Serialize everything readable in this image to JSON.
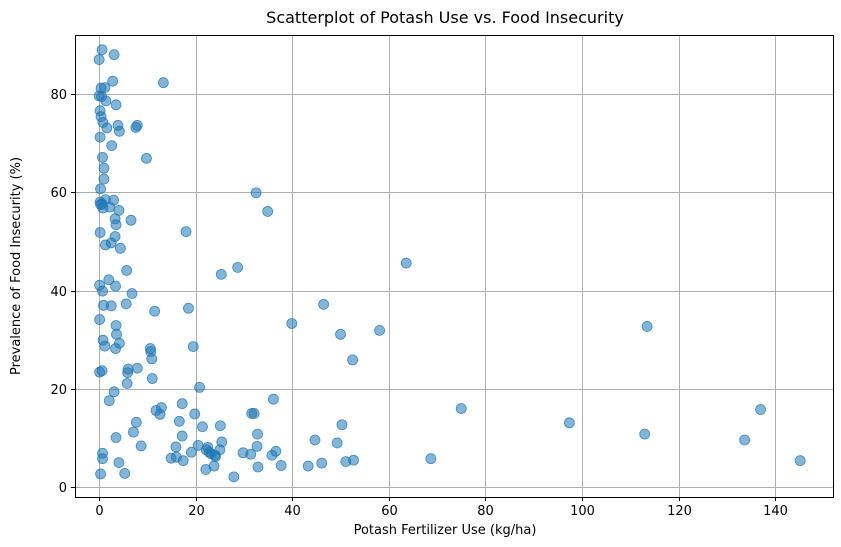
{
  "chart_data": {
    "type": "scatter",
    "title": "Scatterplot of Potash Use vs. Food Insecurity",
    "xlabel": "Potash Fertilizer Use (kg/ha)",
    "ylabel": "Prevalence of Food Insecurity (%)",
    "xlim": [
      -5,
      152
    ],
    "ylim": [
      -2,
      92
    ],
    "xticks": [
      0,
      20,
      40,
      60,
      80,
      100,
      120,
      140
    ],
    "yticks": [
      0,
      20,
      40,
      60,
      80
    ],
    "grid": true,
    "marker_color": "#1f77b4",
    "marker_alpha": 0.55,
    "points": [
      [
        0.6,
        89.0
      ],
      [
        3.1,
        88.0
      ],
      [
        0.0,
        87.0
      ],
      [
        13.3,
        82.3
      ],
      [
        2.8,
        82.6
      ],
      [
        0.4,
        81.2
      ],
      [
        1.2,
        81.3
      ],
      [
        0.0,
        79.6
      ],
      [
        0.5,
        79.5
      ],
      [
        1.4,
        78.6
      ],
      [
        3.5,
        77.8
      ],
      [
        0.2,
        76.6
      ],
      [
        0.4,
        75.4
      ],
      [
        0.8,
        74.2
      ],
      [
        7.9,
        73.6
      ],
      [
        7.6,
        73.2
      ],
      [
        1.6,
        73.1
      ],
      [
        3.9,
        73.6
      ],
      [
        4.2,
        72.4
      ],
      [
        0.2,
        71.2
      ],
      [
        2.6,
        69.5
      ],
      [
        0.7,
        67.1
      ],
      [
        9.8,
        66.9
      ],
      [
        1.0,
        64.9
      ],
      [
        1.0,
        62.7
      ],
      [
        0.3,
        60.7
      ],
      [
        32.5,
        59.9
      ],
      [
        1.3,
        58.5
      ],
      [
        3.0,
        58.4
      ],
      [
        0.2,
        58.0
      ],
      [
        0.6,
        57.6
      ],
      [
        0.3,
        57.5
      ],
      [
        2.2,
        57.0
      ],
      [
        0.8,
        56.8
      ],
      [
        34.9,
        56.1
      ],
      [
        4.1,
        56.3
      ],
      [
        3.3,
        54.6
      ],
      [
        6.6,
        54.3
      ],
      [
        3.5,
        53.4
      ],
      [
        18.0,
        52.0
      ],
      [
        0.2,
        51.8
      ],
      [
        3.3,
        51.0
      ],
      [
        2.5,
        49.7
      ],
      [
        1.3,
        49.3
      ],
      [
        4.4,
        48.6
      ],
      [
        63.6,
        45.6
      ],
      [
        28.7,
        44.7
      ],
      [
        5.7,
        44.1
      ],
      [
        25.3,
        43.3
      ],
      [
        2.0,
        42.2
      ],
      [
        0.1,
        41.1
      ],
      [
        3.4,
        40.9
      ],
      [
        0.7,
        39.9
      ],
      [
        6.8,
        39.4
      ],
      [
        46.5,
        37.2
      ],
      [
        5.6,
        37.3
      ],
      [
        2.5,
        36.9
      ],
      [
        0.9,
        37.0
      ],
      [
        18.5,
        36.4
      ],
      [
        11.5,
        35.8
      ],
      [
        0.1,
        34.1
      ],
      [
        39.9,
        33.3
      ],
      [
        113.5,
        32.7
      ],
      [
        3.5,
        32.9
      ],
      [
        58.1,
        31.9
      ],
      [
        50.0,
        31.1
      ],
      [
        3.6,
        31.1
      ],
      [
        0.8,
        29.9
      ],
      [
        4.2,
        29.3
      ],
      [
        1.2,
        28.7
      ],
      [
        19.5,
        28.6
      ],
      [
        3.4,
        28.2
      ],
      [
        10.6,
        28.2
      ],
      [
        10.7,
        27.6
      ],
      [
        10.9,
        26.1
      ],
      [
        52.5,
        25.9
      ],
      [
        7.9,
        24.2
      ],
      [
        6.0,
        24.0
      ],
      [
        0.6,
        23.7
      ],
      [
        5.9,
        23.3
      ],
      [
        0.1,
        23.4
      ],
      [
        11.0,
        22.1
      ],
      [
        5.8,
        21.1
      ],
      [
        20.8,
        20.3
      ],
      [
        3.1,
        19.4
      ],
      [
        36.1,
        17.9
      ],
      [
        2.1,
        17.6
      ],
      [
        17.2,
        17.0
      ],
      [
        12.9,
        16.2
      ],
      [
        75.0,
        16.0
      ],
      [
        137.0,
        15.8
      ],
      [
        11.8,
        15.6
      ],
      [
        12.6,
        14.8
      ],
      [
        32.1,
        15.0
      ],
      [
        31.6,
        15.0
      ],
      [
        19.8,
        14.9
      ],
      [
        7.7,
        13.2
      ],
      [
        16.6,
        13.4
      ],
      [
        97.4,
        13.1
      ],
      [
        25.1,
        12.5
      ],
      [
        50.3,
        12.7
      ],
      [
        21.4,
        12.3
      ],
      [
        7.1,
        11.2
      ],
      [
        32.8,
        10.8
      ],
      [
        113.0,
        10.8
      ],
      [
        17.2,
        10.4
      ],
      [
        3.5,
        10.1
      ],
      [
        44.7,
        9.6
      ],
      [
        133.7,
        9.6
      ],
      [
        25.4,
        9.2
      ],
      [
        49.3,
        9.0
      ],
      [
        20.5,
        8.5
      ],
      [
        8.7,
        8.4
      ],
      [
        15.9,
        8.2
      ],
      [
        32.7,
        8.3
      ],
      [
        22.5,
        8.1
      ],
      [
        22.2,
        7.6
      ],
      [
        22.8,
        7.1
      ],
      [
        36.6,
        7.3
      ],
      [
        19.1,
        7.1
      ],
      [
        23.2,
        6.8
      ],
      [
        25.0,
        7.6
      ],
      [
        29.8,
        7.0
      ],
      [
        0.7,
        6.9
      ],
      [
        31.4,
        6.7
      ],
      [
        24.1,
        6.2
      ],
      [
        24.0,
        6.5
      ],
      [
        35.8,
        6.5
      ],
      [
        16.0,
        6.1
      ],
      [
        0.7,
        5.8
      ],
      [
        14.9,
        5.9
      ],
      [
        68.7,
        5.8
      ],
      [
        17.4,
        5.4
      ],
      [
        52.7,
        5.5
      ],
      [
        145.2,
        5.4
      ],
      [
        51.1,
        5.2
      ],
      [
        4.1,
        5.0
      ],
      [
        46.1,
        4.9
      ],
      [
        23.8,
        4.3
      ],
      [
        37.7,
        4.4
      ],
      [
        43.3,
        4.3
      ],
      [
        32.9,
        4.1
      ],
      [
        22.1,
        3.6
      ],
      [
        5.3,
        2.8
      ],
      [
        0.3,
        2.7
      ],
      [
        27.9,
        2.1
      ]
    ]
  }
}
